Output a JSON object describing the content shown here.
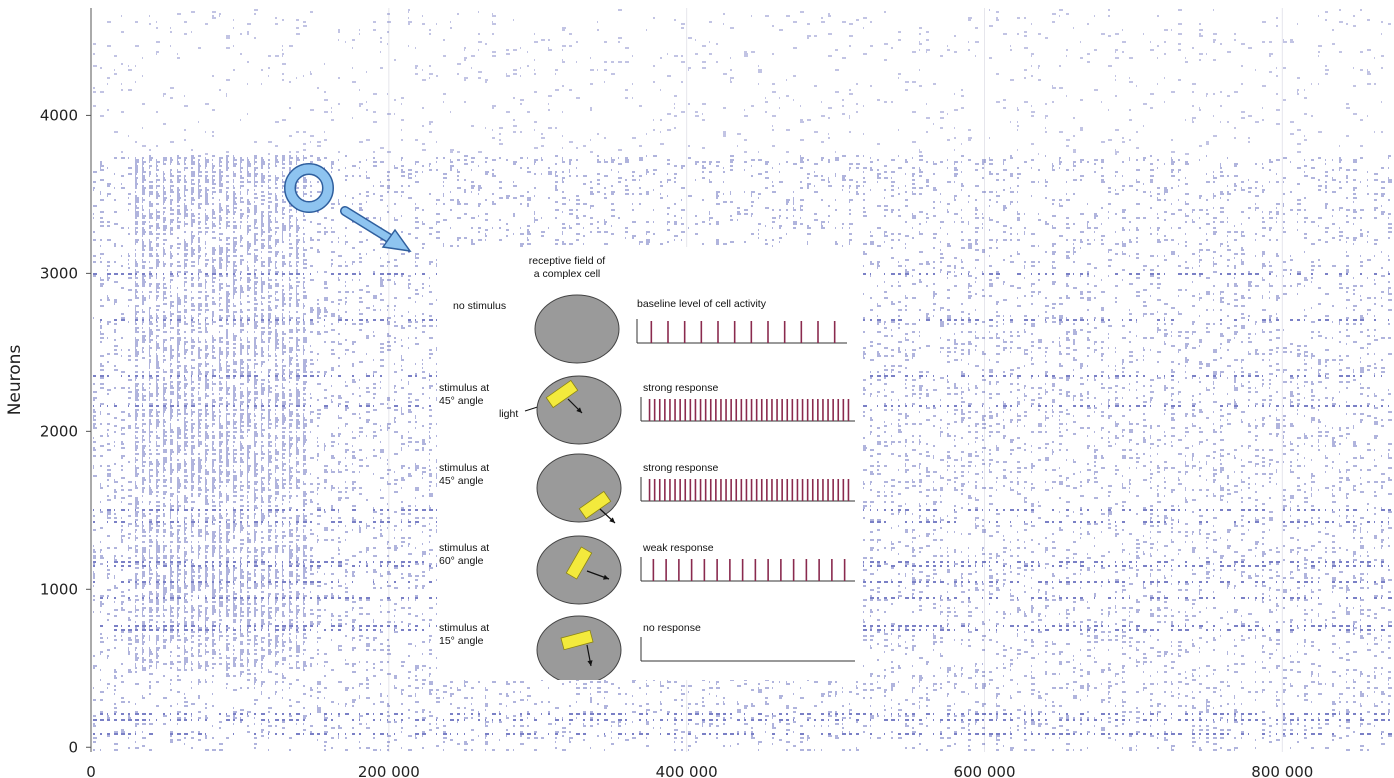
{
  "chart_data": {
    "type": "scatter",
    "subtype": "raster",
    "title": "",
    "xlabel": "",
    "ylabel": "Neurons",
    "xlim": [
      0,
      875000
    ],
    "ylim": [
      -30,
      4680
    ],
    "x_ticks": [
      0,
      200000,
      400000,
      600000,
      800000
    ],
    "x_tick_labels": [
      "0",
      "200 000",
      "400 000",
      "600 000",
      "800 000"
    ],
    "y_ticks": [
      0,
      1000,
      2000,
      3000,
      4000
    ],
    "y_tick_labels": [
      "0",
      "1000",
      "2000",
      "3000",
      "4000"
    ],
    "grid": true,
    "legend": "none",
    "spike_color": "#1f2a9e",
    "dense_band": {
      "x": [
        25000,
        145000
      ],
      "neurons": [
        500,
        3750
      ]
    },
    "sparse_region": {
      "neurons": [
        3750,
        4680
      ]
    }
  },
  "inset": {
    "title_line1": "receptive field of",
    "title_line2": "a complex cell",
    "rows": [
      {
        "stimulus": [
          "no stimulus"
        ],
        "response": "baseline level of cell activity",
        "spikes": 12,
        "bar": null
      },
      {
        "stimulus": [
          "stimulus at",
          "45° angle"
        ],
        "extra_label": "light",
        "response": "strong response",
        "spikes": 40,
        "bar": "45-top"
      },
      {
        "stimulus": [
          "stimulus at",
          "45° angle"
        ],
        "response": "strong response",
        "spikes": 40,
        "bar": "45-bottom"
      },
      {
        "stimulus": [
          "stimulus at",
          "60° angle"
        ],
        "response": "weak response",
        "spikes": 16,
        "bar": "60"
      },
      {
        "stimulus": [
          "stimulus at",
          "15° angle"
        ],
        "response": "no response",
        "spikes": 0,
        "bar": "15"
      }
    ],
    "colors": {
      "disc": "#9a9a9a",
      "bar": "#f3ea3c",
      "spike": "#8a2a4e"
    }
  },
  "annotation": {
    "marker": "ring-and-arrow",
    "color": "#8ec4f0"
  }
}
